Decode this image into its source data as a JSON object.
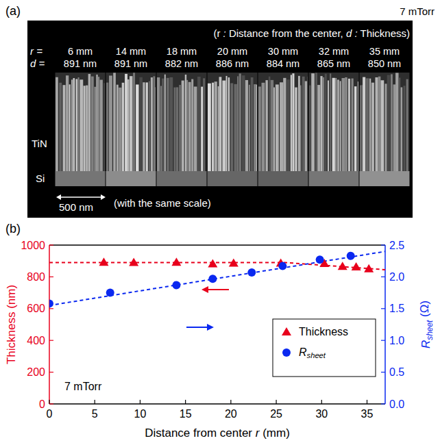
{
  "sem_panel": {
    "label": "(a)",
    "condition": "7 mTorr",
    "note": "(r : Distance from the center, d : Thickness)",
    "r_prefix": "r =",
    "d_prefix": "d =",
    "columns": [
      {
        "r": "6 mm",
        "d": "891 nm"
      },
      {
        "r": "14 mm",
        "d": "891 nm"
      },
      {
        "r": "18 mm",
        "d": "882 nm"
      },
      {
        "r": "20 mm",
        "d": "886 nm"
      },
      {
        "r": "30 mm",
        "d": "884 nm"
      },
      {
        "r": "32 mm",
        "d": "865 nm"
      },
      {
        "r": "35 mm",
        "d": "850 nm"
      }
    ],
    "layers": [
      "TiN",
      "Si"
    ],
    "scale_bar": "500 nm",
    "scale_note": "(with the same scale)"
  },
  "chart_data": {
    "type": "scatter",
    "panel_label": "(b)",
    "x_label": "Distance from center r (mm)",
    "y_label": "Thickness (nm)",
    "y2_label": "Rsheet (Ω)",
    "annotation": "7 mTorr",
    "xlim": [
      0,
      37
    ],
    "xticks": [
      0,
      5,
      10,
      15,
      20,
      25,
      30,
      35
    ],
    "ylim": [
      0,
      1000
    ],
    "yticks": [
      0,
      200,
      400,
      600,
      800,
      1000
    ],
    "y2lim": [
      0,
      2.5
    ],
    "y2ticks": [
      {
        "value": 0,
        "label": "0.0"
      },
      {
        "value": 0.5,
        "label": "0.5"
      },
      {
        "value": 1,
        "label": "1.0"
      },
      {
        "value": 1.5,
        "label": "1.5"
      },
      {
        "value": 2,
        "label": "2.0"
      },
      {
        "value": 2.5,
        "label": "2.5"
      }
    ],
    "grid": false,
    "legend": "lower right",
    "series": [
      {
        "name": "Thickness",
        "type": "scatter",
        "marker": "triangle",
        "color": "#e8001c",
        "axis": "y",
        "x": [
          6,
          9.3,
          14,
          18,
          20.3,
          25.5,
          30.3,
          32.3,
          33.8,
          35.2
        ],
        "values": [
          891,
          890,
          891,
          882,
          886,
          886,
          884,
          865,
          862,
          850
        ]
      },
      {
        "name": "Rsheet",
        "type": "scatter",
        "marker": "circle",
        "color": "#0a28f0",
        "axis": "y2",
        "x": [
          0,
          6.7,
          14,
          18,
          22.3,
          25.7,
          29.8,
          33.2
        ],
        "values": [
          1.58,
          1.75,
          1.87,
          1.97,
          2.07,
          2.17,
          2.27,
          2.33
        ]
      },
      {
        "type": "line",
        "line_style": "dashed",
        "color": "#e8001c",
        "axis": "y",
        "x": [
          0,
          26,
          37
        ],
        "values": [
          890,
          890,
          845
        ]
      },
      {
        "type": "line",
        "line_style": "dashed",
        "color": "#0a28f0",
        "axis": "y2",
        "x": [
          0,
          37
        ],
        "values": [
          1.55,
          2.4
        ]
      }
    ]
  }
}
